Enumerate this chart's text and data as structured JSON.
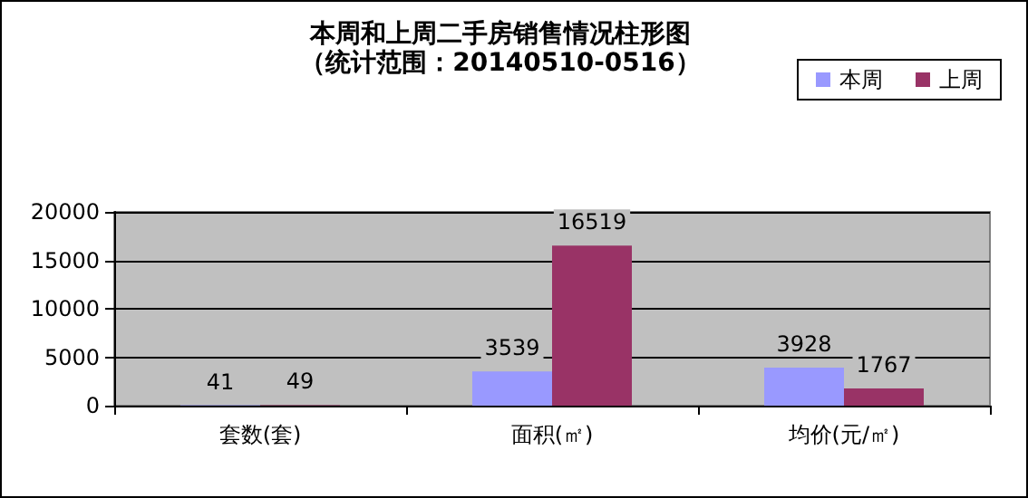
{
  "chart_data": {
    "type": "bar",
    "title": "本周和上周二手房销售情况柱形图",
    "subtitle": "（统计范围：20140510-0516）",
    "categories": [
      "套数(套)",
      "面积(㎡)",
      "均价(元/㎡)"
    ],
    "series": [
      {
        "name": "本周",
        "color": "#9999ff",
        "values": [
          41,
          3539,
          3928
        ]
      },
      {
        "name": "上周",
        "color": "#993366",
        "values": [
          49,
          16519,
          1767
        ]
      }
    ],
    "ylim": [
      0,
      20000
    ],
    "yticks": [
      0,
      5000,
      10000,
      15000,
      20000
    ],
    "grid": "y",
    "legend": "top right",
    "data_labels": true
  }
}
